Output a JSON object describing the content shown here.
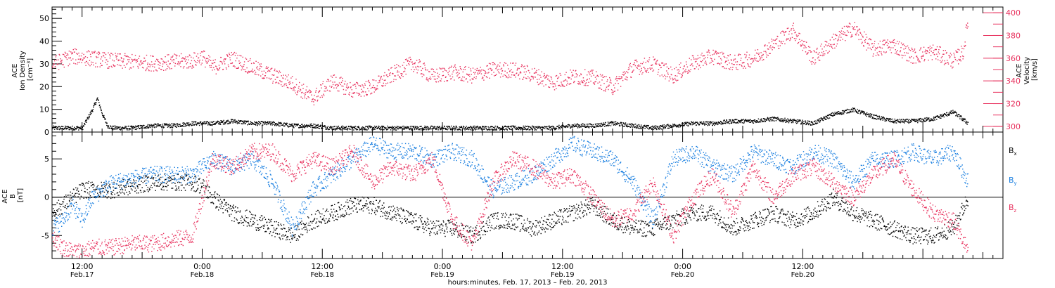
{
  "colors": {
    "black": "#000000",
    "pink": "#e8335f",
    "blue": "#1a7fe0"
  },
  "x_axis": {
    "range_hours": [
      0,
      95
    ],
    "title": "hours:minutes, Feb. 17, 2013 – Feb. 20, 2013",
    "ticks": [
      {
        "time": "12:00",
        "date": "Feb.17"
      },
      {
        "time": "0:00",
        "date": "Feb.18"
      },
      {
        "time": "12:00",
        "date": "Feb.18"
      },
      {
        "time": "0:00",
        "date": "Feb.19"
      },
      {
        "time": "12:00",
        "date": "Feb.19"
      },
      {
        "time": "0:00",
        "date": "Feb.20"
      },
      {
        "time": "12:00",
        "date": "Feb.20"
      }
    ]
  },
  "chart_data": [
    {
      "type": "scatter",
      "ylabel_lines": [
        "ACE",
        "Ion Density",
        "[cm⁻³]"
      ],
      "ylim": [
        0,
        55
      ],
      "yticks": [
        "0",
        "10",
        "20",
        "30",
        "40",
        "50"
      ],
      "y2label_lines": [
        "ACE",
        "Velocity",
        "[km/s]"
      ],
      "y2lim": [
        295,
        405
      ],
      "y2ticks": [
        "300",
        "320",
        "340",
        "360",
        "380",
        "400"
      ],
      "series": [
        {
          "axis": "left",
          "color": "#000000",
          "x": [
            0,
            1,
            2,
            3,
            4,
            4.5,
            5,
            5.5,
            6,
            8,
            10,
            12,
            14,
            16,
            18,
            20,
            22,
            24,
            26,
            28,
            30,
            32,
            34,
            36,
            38,
            40,
            42,
            44,
            46,
            48,
            50,
            52,
            54,
            56,
            58,
            60,
            62,
            64,
            66,
            68,
            70,
            72,
            74,
            76,
            78,
            80,
            82,
            84,
            86,
            88,
            90,
            91.5
          ],
          "y": [
            2,
            2,
            2,
            2,
            10,
            15,
            8,
            3,
            2,
            2,
            3,
            3,
            4,
            4,
            5,
            4,
            4,
            3,
            3,
            2,
            2,
            2,
            2,
            2,
            2,
            2,
            2,
            2,
            2,
            2,
            2,
            3,
            3,
            4,
            3,
            2,
            3,
            4,
            4,
            5,
            5,
            6,
            5,
            4,
            8,
            10,
            7,
            5,
            5,
            6,
            9,
            4
          ]
        },
        {
          "axis": "right",
          "color": "#e8335f",
          "x": [
            0,
            2,
            4,
            6,
            8,
            10,
            12,
            14,
            15,
            16,
            18,
            20,
            22,
            24,
            26,
            28,
            30,
            32,
            34,
            36,
            38,
            40,
            42,
            44,
            46,
            48,
            50,
            52,
            54,
            56,
            58,
            60,
            62,
            64,
            66,
            68,
            70,
            72,
            74,
            76,
            78,
            80,
            82,
            84,
            86,
            88,
            90,
            91,
            91.5
          ],
          "y": [
            355,
            362,
            360,
            358,
            357,
            356,
            357,
            358,
            362,
            352,
            360,
            352,
            345,
            338,
            325,
            340,
            332,
            335,
            346,
            356,
            344,
            348,
            345,
            350,
            350,
            346,
            339,
            344,
            343,
            335,
            352,
            355,
            345,
            356,
            362,
            356,
            360,
            372,
            385,
            360,
            375,
            387,
            368,
            372,
            362,
            366,
            358,
            366,
            396
          ]
        }
      ]
    },
    {
      "type": "scatter",
      "ylabel_lines": [
        "ACE",
        "B",
        "[nT]"
      ],
      "ylim": [
        -8,
        8.5
      ],
      "yticks": [
        "-5",
        "0",
        "5"
      ],
      "zero_line": true,
      "legend_position": "right",
      "series": [
        {
          "name": "Bx",
          "legend_base": "B",
          "legend_sub": "x",
          "color": "#000000",
          "x": [
            0,
            1,
            2,
            3,
            4,
            6,
            8,
            10,
            12,
            14,
            15,
            16,
            18,
            20,
            22,
            24,
            26,
            28,
            30,
            32,
            34,
            36,
            38,
            40,
            42,
            44,
            46,
            48,
            50,
            52,
            54,
            56,
            58,
            60,
            62,
            64,
            66,
            68,
            70,
            72,
            74,
            76,
            78,
            80,
            82,
            84,
            86,
            88,
            90,
            91.5
          ],
          "y": [
            -2,
            -1,
            0,
            1,
            1,
            1,
            1.5,
            2,
            2,
            2,
            1.5,
            0,
            -2,
            -3,
            -4,
            -5,
            -3,
            -2,
            -1,
            -1,
            -2,
            -3,
            -4,
            -4,
            -5,
            -3,
            -3,
            -4,
            -3,
            -2,
            -1,
            -3,
            -4,
            -4,
            -3,
            -2,
            -2,
            -4,
            -3,
            -2,
            -3,
            -2,
            0,
            -2,
            -3,
            -4,
            -5,
            -5,
            -4,
            0
          ]
        },
        {
          "name": "By",
          "legend_base": "B",
          "legend_sub": "y",
          "color": "#1a7fe0",
          "x": [
            0,
            1,
            2,
            3,
            4,
            6,
            8,
            10,
            12,
            14,
            15,
            16,
            18,
            20,
            22,
            24,
            26,
            28,
            30,
            32,
            34,
            36,
            38,
            40,
            42,
            44,
            46,
            48,
            50,
            52,
            54,
            56,
            58,
            60,
            62,
            64,
            66,
            68,
            70,
            72,
            74,
            76,
            78,
            80,
            82,
            84,
            86,
            88,
            90,
            91.5
          ],
          "y": [
            -4,
            -3,
            -1,
            -3,
            0,
            2,
            2.5,
            3,
            3,
            3,
            4,
            5,
            4,
            5,
            2,
            -4,
            1,
            3,
            5,
            7,
            6,
            6,
            5,
            6,
            5,
            1,
            2,
            3,
            5,
            7,
            6,
            5,
            2,
            -3,
            5,
            6,
            4,
            3,
            6,
            5,
            4,
            6,
            5,
            2,
            5,
            5,
            6,
            5,
            6,
            2
          ]
        },
        {
          "name": "Bz",
          "legend_base": "B",
          "legend_sub": "z",
          "color": "#e8335f",
          "x": [
            0,
            1,
            2,
            3,
            4,
            5,
            6,
            8,
            10,
            12,
            14,
            15,
            16,
            18,
            20,
            22,
            24,
            26,
            28,
            30,
            32,
            34,
            36,
            38,
            40,
            42,
            44,
            46,
            48,
            50,
            52,
            54,
            56,
            58,
            60,
            62,
            64,
            66,
            68,
            70,
            72,
            74,
            76,
            78,
            80,
            82,
            84,
            86,
            88,
            90,
            91.5
          ],
          "y": [
            -5,
            -6.5,
            -7,
            -7,
            -6.5,
            -6.5,
            -6.5,
            -6,
            -6,
            -5.5,
            -5,
            0,
            5,
            4,
            6,
            6,
            3,
            5,
            4,
            6,
            2,
            4,
            3,
            5,
            -3,
            -6,
            2,
            5,
            4,
            2,
            3,
            0,
            -3,
            -2,
            2,
            -5,
            0,
            3,
            -2,
            4,
            0,
            3,
            4,
            2,
            0,
            3,
            5,
            1,
            -2,
            -3,
            -7
          ]
        }
      ]
    }
  ]
}
